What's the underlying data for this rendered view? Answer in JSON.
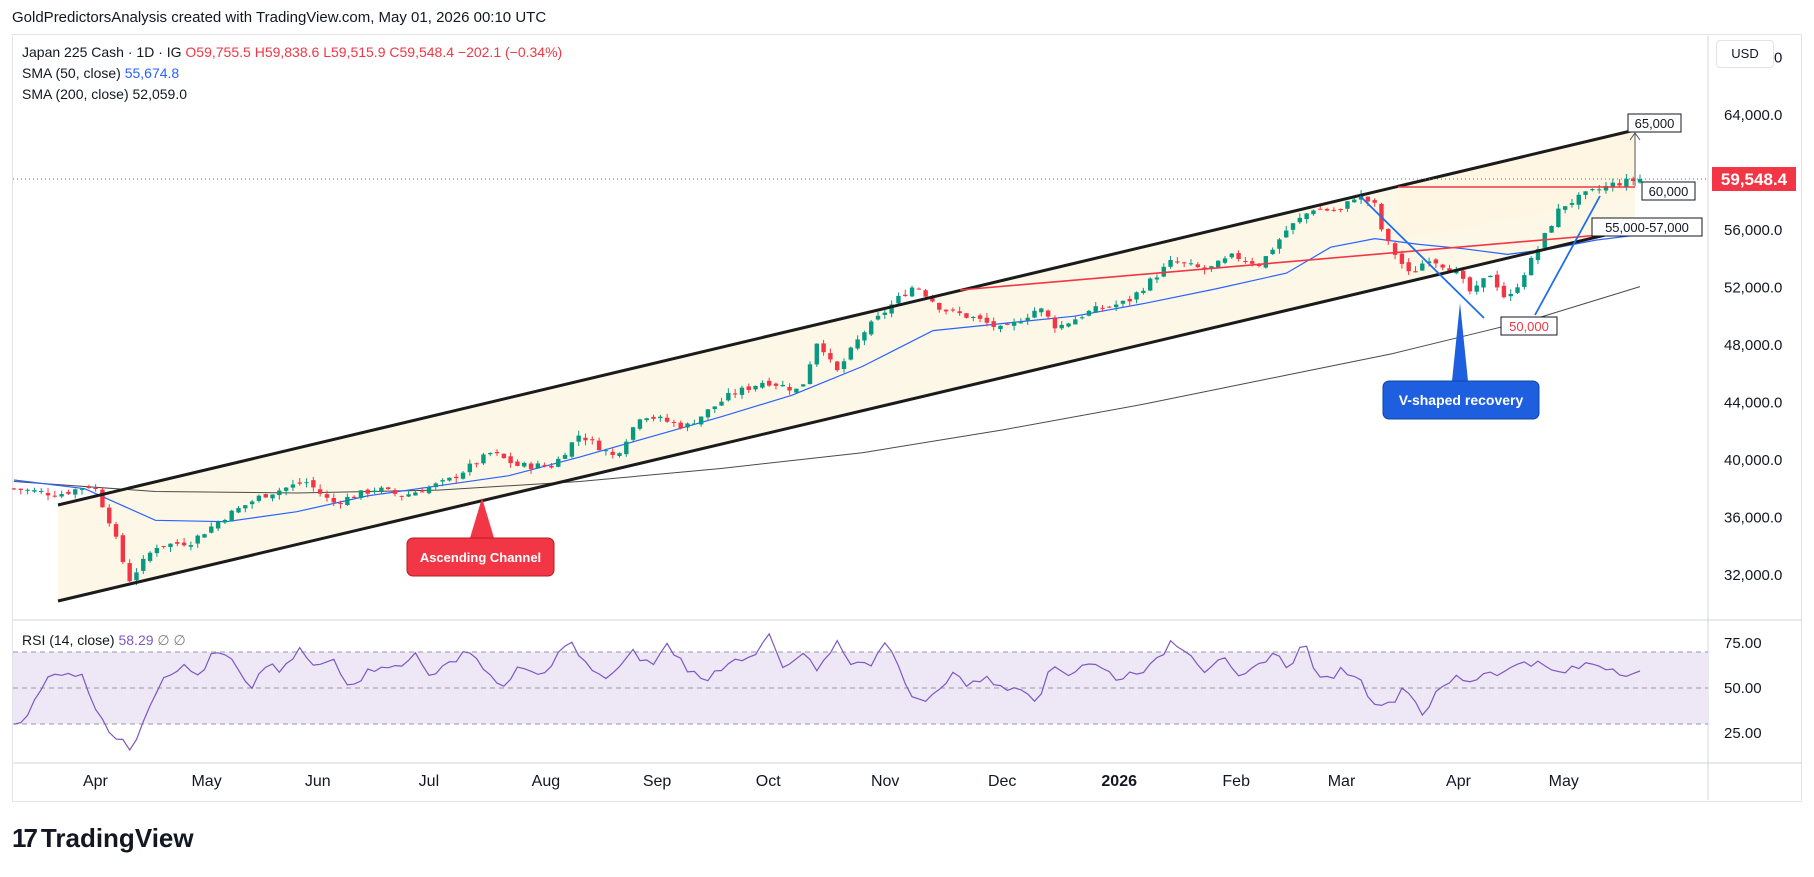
{
  "header_text": "GoldPredictorsAnalysis created with TradingView.com, May 01, 2026 00:10 UTC",
  "legend": {
    "symbol": "Japan 225 Cash · 1D · IG",
    "open": "O59,755.5",
    "high": "H59,838.6",
    "low": "L59,515.9",
    "close": "C59,548.4",
    "change": "−202.1 (−0.34%)",
    "sma50_label": "SMA (50, close)",
    "sma50_value": "55,674.8",
    "sma200_label": "SMA (200, close)",
    "sma200_value": "52,059.0"
  },
  "rsi_legend": {
    "label": "RSI (14, close)",
    "value": "58.29",
    "extra": "∅ ∅"
  },
  "currency": "USD",
  "footer": {
    "logo": "17",
    "brand": "TradingView"
  },
  "colors": {
    "up": "#089981",
    "down": "#f23645",
    "sma50": "#2962ff",
    "sma200": "#4a4a4a",
    "channel_fill": "#fdf6e3",
    "rsi": "#7e57c2",
    "rsi_band": "#ede7f6",
    "price_tag": "#f23645"
  },
  "chart_data": {
    "type": "candlestick",
    "price_axis": {
      "ticks": [
        32000,
        36000,
        40000,
        44000,
        48000,
        52000,
        56000,
        60000,
        64000,
        68000
      ],
      "tick_labels": [
        "32,000.0",
        "36,000.0",
        "40,000.0",
        "44,000.0",
        "48,000.0",
        "52,000.0",
        "56,000.0",
        "60,000.0",
        "64,000.0",
        "68,000.0"
      ],
      "range": [
        29000,
        69500
      ],
      "last_price": 59548.4,
      "last_price_label": "59,548.4"
    },
    "time_axis": {
      "labels": [
        "Apr",
        "May",
        "Jun",
        "Jul",
        "Aug",
        "Sep",
        "Oct",
        "Nov",
        "Dec",
        "2026",
        "Feb",
        "Mar",
        "Apr",
        "May"
      ],
      "bold": [
        "2026"
      ],
      "month_index": [
        -0.15,
        0.8,
        1.75,
        2.7,
        3.7,
        4.65,
        5.6,
        6.6,
        7.6,
        8.6,
        9.6,
        10.5,
        11.5,
        12.4
      ]
    },
    "ohlc_anchors": [
      [
        0,
        38000
      ],
      [
        0.5,
        37600
      ],
      [
        0.9,
        38300
      ],
      [
        1.1,
        35500
      ],
      [
        1.3,
        31600
      ],
      [
        1.6,
        34000
      ],
      [
        2.0,
        34300
      ],
      [
        2.4,
        36100
      ],
      [
        2.8,
        37500
      ],
      [
        3.3,
        38500
      ],
      [
        3.6,
        37000
      ],
      [
        4.1,
        38000
      ],
      [
        4.4,
        37500
      ],
      [
        4.9,
        38500
      ],
      [
        5.4,
        40500
      ],
      [
        5.7,
        39600
      ],
      [
        6.1,
        39600
      ],
      [
        6.4,
        41800
      ],
      [
        6.8,
        40200
      ],
      [
        7.1,
        43200
      ],
      [
        7.6,
        42300
      ],
      [
        8.1,
        44500
      ],
      [
        8.5,
        45500
      ],
      [
        8.9,
        44800
      ],
      [
        9.1,
        48500
      ],
      [
        9.3,
        46000
      ],
      [
        9.6,
        48800
      ],
      [
        10.0,
        51200
      ],
      [
        10.2,
        52200
      ],
      [
        10.5,
        50500
      ],
      [
        10.9,
        49800
      ],
      [
        11.2,
        49000
      ],
      [
        11.6,
        50600
      ],
      [
        11.8,
        49200
      ],
      [
        12.2,
        50400
      ],
      [
        12.6,
        51000
      ],
      [
        13.1,
        53800
      ],
      [
        13.5,
        53200
      ],
      [
        13.8,
        54200
      ],
      [
        14.1,
        53600
      ],
      [
        14.4,
        56000
      ],
      [
        14.7,
        57500
      ],
      [
        15.0,
        57300
      ],
      [
        15.2,
        58500
      ],
      [
        15.4,
        57700
      ],
      [
        15.5,
        55500
      ],
      [
        15.8,
        52800
      ],
      [
        16.0,
        54100
      ],
      [
        16.3,
        53200
      ],
      [
        16.5,
        51500
      ],
      [
        16.7,
        53000
      ],
      [
        16.9,
        51000
      ],
      [
        17.2,
        54200
      ],
      [
        17.5,
        57600
      ],
      [
        17.8,
        58500
      ],
      [
        18.1,
        59200
      ],
      [
        18.4,
        59548
      ]
    ],
    "sma50": [
      [
        0,
        38600
      ],
      [
        0.8,
        38000
      ],
      [
        1.6,
        35800
      ],
      [
        2.4,
        35700
      ],
      [
        3.2,
        36400
      ],
      [
        4.0,
        37500
      ],
      [
        4.8,
        38200
      ],
      [
        5.6,
        38900
      ],
      [
        6.4,
        40200
      ],
      [
        7.2,
        41600
      ],
      [
        8.0,
        43000
      ],
      [
        8.8,
        44500
      ],
      [
        9.6,
        46500
      ],
      [
        10.4,
        49000
      ],
      [
        11.2,
        49500
      ],
      [
        12.0,
        50000
      ],
      [
        12.8,
        50900
      ],
      [
        13.6,
        51900
      ],
      [
        14.4,
        53000
      ],
      [
        14.9,
        54800
      ],
      [
        15.4,
        55400
      ],
      [
        15.9,
        55000
      ],
      [
        16.4,
        54700
      ],
      [
        16.9,
        54300
      ],
      [
        17.4,
        54700
      ],
      [
        17.9,
        55300
      ],
      [
        18.4,
        55675
      ]
    ],
    "sma200": [
      [
        0,
        38500
      ],
      [
        1.6,
        37800
      ],
      [
        3.2,
        37700
      ],
      [
        4.8,
        37900
      ],
      [
        6.4,
        38500
      ],
      [
        8.0,
        39400
      ],
      [
        9.6,
        40500
      ],
      [
        11.2,
        42100
      ],
      [
        12.8,
        43900
      ],
      [
        14.4,
        45900
      ],
      [
        15.6,
        47400
      ],
      [
        16.4,
        48600
      ],
      [
        17.2,
        49800
      ],
      [
        18.4,
        52059
      ]
    ],
    "rsi": {
      "levels": [
        70,
        50,
        30
      ],
      "tick_labels": [
        "75.00",
        "50.00",
        "25.00"
      ],
      "values": [
        30,
        38,
        55,
        60,
        57,
        38,
        22,
        16,
        40,
        58,
        62,
        57,
        70,
        65,
        48,
        63,
        58,
        72,
        60,
        67,
        52,
        58,
        64,
        60,
        70,
        55,
        64,
        72,
        62,
        48,
        62,
        56,
        60,
        78,
        64,
        55,
        60,
        70,
        62,
        74,
        63,
        54,
        60,
        68,
        64,
        80,
        58,
        70,
        57,
        77,
        64,
        62,
        78,
        55,
        42,
        46,
        60,
        50,
        58,
        48,
        52,
        44,
        62,
        58,
        65,
        60,
        55,
        60,
        62,
        76,
        72,
        60,
        68,
        54,
        60,
        70,
        62,
        75,
        52,
        60,
        58,
        44,
        40,
        52,
        36,
        48,
        56,
        54,
        60,
        58,
        66,
        63,
        58,
        60,
        64,
        62,
        59,
        58
      ]
    },
    "annotations": [
      {
        "text": "Ascending Channel"
      },
      {
        "text": "V-shaped recovery"
      },
      {
        "text": "65,000"
      },
      {
        "text": "60,000"
      },
      {
        "text": "55,000-57,000"
      },
      {
        "text": "50,000"
      }
    ]
  }
}
